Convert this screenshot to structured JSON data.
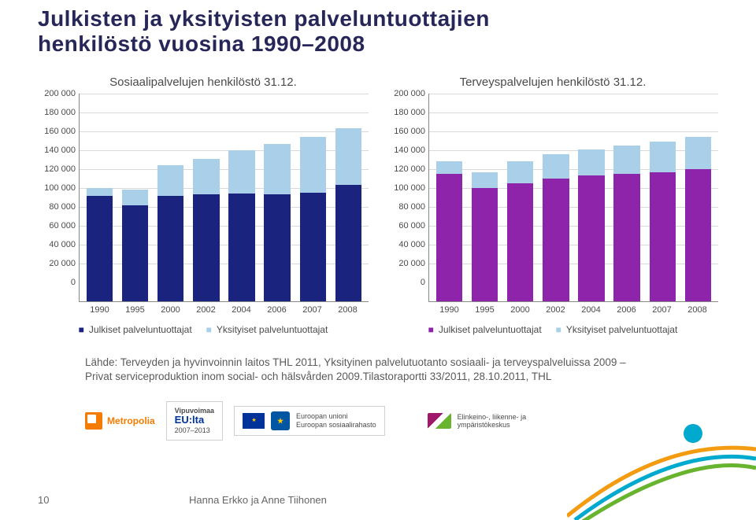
{
  "title_line1": "Julkisten ja yksityisten palveluntuottajien",
  "title_line2": "henkilöstö vuosina 1990–2008",
  "left_chart": {
    "type": "stacked_bar",
    "title": "Sosiaalipalvelujen henkilöstö 31.12.",
    "categories": [
      "1990",
      "1995",
      "2000",
      "2002",
      "2004",
      "2006",
      "2007",
      "2008"
    ],
    "series": [
      {
        "name": "Julkiset palveluntuottajat",
        "color": "#1a237e",
        "values": [
          112000,
          102000,
          112000,
          113000,
          114000,
          113000,
          115000,
          123000
        ]
      },
      {
        "name": "Yksityiset palveluntuottajat",
        "color": "#a9cfe9",
        "values": [
          8000,
          16000,
          32000,
          38000,
          46000,
          54000,
          59000,
          60000
        ]
      }
    ],
    "y": {
      "min": 0,
      "max": 200000,
      "step": 20000
    },
    "grid_color": "#d9d9d9",
    "bg_color": "#ffffff",
    "label_fontsize": 11,
    "title_fontsize": 15
  },
  "right_chart": {
    "type": "stacked_bar",
    "title": "Terveyspalvelujen henkilöstö 31.12.",
    "categories": [
      "1990",
      "1995",
      "2000",
      "2002",
      "2004",
      "2006",
      "2007",
      "2008"
    ],
    "series": [
      {
        "name": "Julkiset palveluntuottajat",
        "color": "#8e24aa",
        "values": [
          135000,
          120000,
          125000,
          130000,
          133000,
          135000,
          137000,
          140000
        ]
      },
      {
        "name": "Yksityiset palveluntuottajat",
        "color": "#a9cfe9",
        "values": [
          13000,
          17000,
          23000,
          26000,
          28000,
          30000,
          32000,
          34000
        ]
      }
    ],
    "y": {
      "min": 0,
      "max": 200000,
      "step": 20000
    },
    "grid_color": "#d9d9d9",
    "bg_color": "#ffffff",
    "label_fontsize": 11,
    "title_fontsize": 15
  },
  "legend_bullet": "■",
  "source_line1": "Lähde: Terveyden ja hyvinvoinnin laitos THL 2011, Yksityinen palvelutuotanto sosiaali- ja terveyspalveluissa 2009 –",
  "source_line2": "Privat serviceproduktion inom social- och hälsvården 2009.Tilastoraportti 33/2011, 28.10.2011, THL",
  "logos": {
    "metropolia": "Metropolia",
    "vipuvoimaa_l1": "Vipuvoimaa",
    "vipuvoimaa_l2": "EU:lta",
    "vipuvoimaa_l3": "2007–2013",
    "eu_l1": "Euroopan unioni",
    "eu_l2": "Euroopan sosiaalirahasto",
    "ely_l1": "Elinkeino-, liikenne- ja",
    "ely_l2": "ympäristökeskus"
  },
  "page_number": "10",
  "authors": "Hanna Erkko ja Anne Tiihonen",
  "swoosh_colors": [
    "#f39c12",
    "#00a9ce",
    "#68b42e"
  ]
}
